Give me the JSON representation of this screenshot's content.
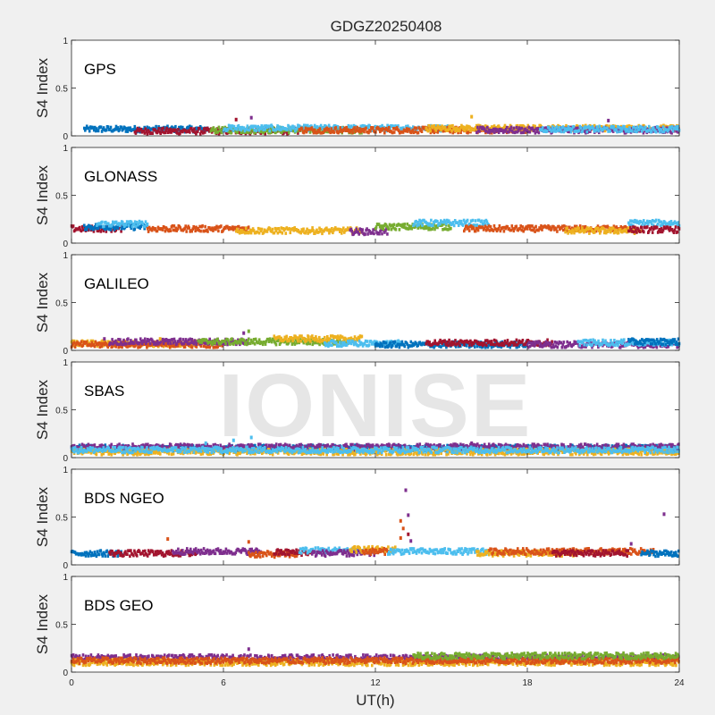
{
  "figure": {
    "title": "GDGZ20250408",
    "xlabel": "UT(h)",
    "ylabel": "S4 Index",
    "watermark": "IONISE",
    "xticks": [
      "0",
      "6",
      "12",
      "18",
      "24"
    ],
    "yticks": [
      "0",
      "0.5",
      "1"
    ]
  },
  "colors": {
    "blue": "#0072bd",
    "orange": "#d95319",
    "yellow": "#edb120",
    "purple": "#7e2f8e",
    "green": "#77ac30",
    "cyan": "#4dbeee",
    "red": "#a2142f"
  },
  "chart_data": [
    {
      "type": "scatter",
      "system": "GPS",
      "xlim": [
        0,
        24
      ],
      "ylim": [
        0,
        1
      ],
      "grid": false,
      "baseline_segments": [
        {
          "color": "blue",
          "x": [
            0.5,
            5.5
          ],
          "s4": 0.07
        },
        {
          "color": "red",
          "x": [
            2.5,
            9.0
          ],
          "s4": 0.05
        },
        {
          "color": "green",
          "x": [
            5.5,
            11.5
          ],
          "s4": 0.06
        },
        {
          "color": "cyan",
          "x": [
            6.0,
            15.0
          ],
          "s4": 0.08
        },
        {
          "color": "orange",
          "x": [
            9.0,
            18.0
          ],
          "s4": 0.06
        },
        {
          "color": "yellow",
          "x": [
            14.0,
            24.0
          ],
          "s4": 0.08
        },
        {
          "color": "purple",
          "x": [
            16.0,
            24.0
          ],
          "s4": 0.06
        },
        {
          "color": "cyan",
          "x": [
            18.5,
            24.0
          ],
          "s4": 0.07
        }
      ],
      "outliers": [
        {
          "x": 7.1,
          "s4": 0.19,
          "color": "purple"
        },
        {
          "x": 15.8,
          "s4": 0.2,
          "color": "yellow"
        },
        {
          "x": 6.5,
          "s4": 0.17,
          "color": "red"
        },
        {
          "x": 21.2,
          "s4": 0.16,
          "color": "purple"
        }
      ]
    },
    {
      "type": "scatter",
      "system": "GLONASS",
      "xlim": [
        0,
        24
      ],
      "ylim": [
        0,
        1
      ],
      "grid": false,
      "baseline_segments": [
        {
          "color": "red",
          "x": [
            0.0,
            2.0
          ],
          "s4": 0.15
        },
        {
          "color": "blue",
          "x": [
            0.5,
            3.0
          ],
          "s4": 0.17
        },
        {
          "color": "cyan",
          "x": [
            1.0,
            3.0
          ],
          "s4": 0.2
        },
        {
          "color": "orange",
          "x": [
            3.0,
            7.0
          ],
          "s4": 0.15
        },
        {
          "color": "yellow",
          "x": [
            6.5,
            11.5
          ],
          "s4": 0.13
        },
        {
          "color": "purple",
          "x": [
            11.0,
            12.5
          ],
          "s4": 0.12
        },
        {
          "color": "green",
          "x": [
            12.0,
            15.0
          ],
          "s4": 0.17
        },
        {
          "color": "cyan",
          "x": [
            13.5,
            16.5
          ],
          "s4": 0.21
        },
        {
          "color": "orange",
          "x": [
            15.5,
            22.0
          ],
          "s4": 0.15
        },
        {
          "color": "yellow",
          "x": [
            19.5,
            22.5
          ],
          "s4": 0.13
        },
        {
          "color": "cyan",
          "x": [
            22.0,
            24.0
          ],
          "s4": 0.21
        },
        {
          "color": "red",
          "x": [
            22.0,
            24.0
          ],
          "s4": 0.14
        }
      ],
      "outliers": []
    },
    {
      "type": "scatter",
      "system": "GALILEO",
      "xlim": [
        0,
        24
      ],
      "ylim": [
        0,
        1
      ],
      "grid": false,
      "baseline_segments": [
        {
          "color": "yellow",
          "x": [
            0.0,
            5.0
          ],
          "s4": 0.07
        },
        {
          "color": "orange",
          "x": [
            0.0,
            6.0
          ],
          "s4": 0.06
        },
        {
          "color": "purple",
          "x": [
            1.5,
            7.0
          ],
          "s4": 0.09
        },
        {
          "color": "green",
          "x": [
            5.0,
            11.0
          ],
          "s4": 0.09
        },
        {
          "color": "yellow",
          "x": [
            8.0,
            11.5
          ],
          "s4": 0.12
        },
        {
          "color": "cyan",
          "x": [
            10.0,
            13.0
          ],
          "s4": 0.07
        },
        {
          "color": "blue",
          "x": [
            12.0,
            18.0
          ],
          "s4": 0.06
        },
        {
          "color": "red",
          "x": [
            14.0,
            19.0
          ],
          "s4": 0.08
        },
        {
          "color": "purple",
          "x": [
            18.0,
            24.0
          ],
          "s4": 0.06
        },
        {
          "color": "cyan",
          "x": [
            20.0,
            24.0
          ],
          "s4": 0.08
        },
        {
          "color": "blue",
          "x": [
            22.0,
            24.0
          ],
          "s4": 0.09
        }
      ],
      "outliers": [
        {
          "x": 6.8,
          "s4": 0.18,
          "color": "purple"
        },
        {
          "x": 7.0,
          "s4": 0.2,
          "color": "green"
        },
        {
          "x": 1.3,
          "s4": 0.12,
          "color": "purple"
        },
        {
          "x": 3.5,
          "s4": 0.12,
          "color": "yellow"
        }
      ]
    },
    {
      "type": "scatter",
      "system": "SBAS",
      "xlim": [
        0,
        24
      ],
      "ylim": [
        0,
        1
      ],
      "grid": false,
      "baseline_segments": [
        {
          "color": "blue",
          "x": [
            0.0,
            24.0
          ],
          "s4": 0.1
        },
        {
          "color": "purple",
          "x": [
            0.0,
            24.0
          ],
          "s4": 0.11
        },
        {
          "color": "yellow",
          "x": [
            0.0,
            24.0
          ],
          "s4": 0.06
        },
        {
          "color": "cyan",
          "x": [
            0.0,
            24.0
          ],
          "s4": 0.08
        }
      ],
      "outliers": [
        {
          "x": 6.4,
          "s4": 0.18,
          "color": "cyan"
        },
        {
          "x": 7.1,
          "s4": 0.21,
          "color": "cyan"
        },
        {
          "x": 5.3,
          "s4": 0.15,
          "color": "cyan"
        },
        {
          "x": 15.8,
          "s4": 0.15,
          "color": "purple"
        }
      ]
    },
    {
      "type": "scatter",
      "system": "BDS NGEO",
      "xlim": [
        0,
        24
      ],
      "ylim": [
        0,
        1
      ],
      "grid": false,
      "baseline_segments": [
        {
          "color": "blue",
          "x": [
            0.0,
            2.0
          ],
          "s4": 0.12
        },
        {
          "color": "red",
          "x": [
            1.5,
            5.0
          ],
          "s4": 0.12
        },
        {
          "color": "purple",
          "x": [
            4.0,
            7.5
          ],
          "s4": 0.14
        },
        {
          "color": "orange",
          "x": [
            7.0,
            9.0
          ],
          "s4": 0.11
        },
        {
          "color": "red",
          "x": [
            8.0,
            9.5
          ],
          "s4": 0.13
        },
        {
          "color": "cyan",
          "x": [
            9.0,
            11.5
          ],
          "s4": 0.15
        },
        {
          "color": "purple",
          "x": [
            9.5,
            12.0
          ],
          "s4": 0.12
        },
        {
          "color": "yellow",
          "x": [
            11.0,
            12.8
          ],
          "s4": 0.16
        },
        {
          "color": "orange",
          "x": [
            11.5,
            12.5
          ],
          "s4": 0.14
        },
        {
          "color": "cyan",
          "x": [
            12.5,
            16.5
          ],
          "s4": 0.14
        },
        {
          "color": "yellow",
          "x": [
            16.0,
            20.0
          ],
          "s4": 0.12
        },
        {
          "color": "orange",
          "x": [
            16.5,
            23.0
          ],
          "s4": 0.14
        },
        {
          "color": "red",
          "x": [
            19.0,
            22.0
          ],
          "s4": 0.12
        },
        {
          "color": "blue",
          "x": [
            22.5,
            24.0
          ],
          "s4": 0.12
        }
      ],
      "outliers": [
        {
          "x": 13.2,
          "s4": 0.78,
          "color": "purple"
        },
        {
          "x": 13.3,
          "s4": 0.52,
          "color": "purple"
        },
        {
          "x": 13.0,
          "s4": 0.46,
          "color": "orange"
        },
        {
          "x": 13.1,
          "s4": 0.38,
          "color": "orange"
        },
        {
          "x": 13.3,
          "s4": 0.32,
          "color": "red"
        },
        {
          "x": 13.0,
          "s4": 0.28,
          "color": "orange"
        },
        {
          "x": 13.4,
          "s4": 0.25,
          "color": "purple"
        },
        {
          "x": 23.4,
          "s4": 0.53,
          "color": "purple"
        },
        {
          "x": 3.8,
          "s4": 0.27,
          "color": "orange"
        },
        {
          "x": 7.0,
          "s4": 0.24,
          "color": "orange"
        },
        {
          "x": 22.1,
          "s4": 0.22,
          "color": "purple"
        }
      ]
    },
    {
      "type": "scatter",
      "system": "BDS GEO",
      "xlim": [
        0,
        24
      ],
      "ylim": [
        0,
        1
      ],
      "grid": false,
      "baseline_segments": [
        {
          "color": "purple",
          "x": [
            0.0,
            24.0
          ],
          "s4": 0.15
        },
        {
          "color": "yellow",
          "x": [
            0.0,
            24.0
          ],
          "s4": 0.1
        },
        {
          "color": "orange",
          "x": [
            0.0,
            24.0
          ],
          "s4": 0.12
        },
        {
          "color": "green",
          "x": [
            13.5,
            24.0
          ],
          "s4": 0.17
        }
      ],
      "outliers": [
        {
          "x": 7.0,
          "s4": 0.24,
          "color": "purple"
        }
      ]
    }
  ]
}
